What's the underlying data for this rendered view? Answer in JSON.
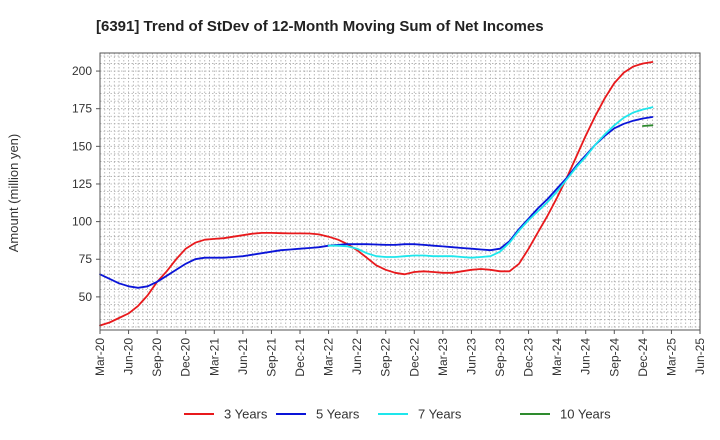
{
  "chart_data": {
    "type": "line",
    "title": "[6391]  Trend of StDev of 12-Month Moving Sum of Net Incomes",
    "ylabel": "Amount (million yen)",
    "xlabel": "",
    "ylim": [
      28,
      212
    ],
    "yticks": [
      50,
      75,
      100,
      125,
      150,
      175,
      200
    ],
    "xticks": [
      "Mar-20",
      "Jun-20",
      "Sep-20",
      "Dec-20",
      "Mar-21",
      "Jun-21",
      "Sep-21",
      "Dec-21",
      "Mar-22",
      "Jun-22",
      "Sep-22",
      "Dec-22",
      "Mar-23",
      "Jun-23",
      "Sep-23",
      "Dec-23",
      "Mar-24",
      "Jun-24",
      "Sep-24",
      "Dec-24",
      "Mar-25",
      "Jun-25"
    ],
    "grid": true,
    "legend_position": "bottom",
    "series": [
      {
        "name": "3 Years",
        "color": "#e8191c",
        "start_index": 0,
        "values": [
          31,
          33,
          36,
          39,
          44,
          51,
          60,
          67,
          75,
          82,
          86,
          88,
          88.5,
          89,
          90,
          91,
          92,
          92.5,
          92.5,
          92.3,
          92.2,
          92.2,
          92.1,
          91.5,
          90,
          88,
          85,
          81,
          76,
          71,
          68,
          66,
          65,
          66.5,
          67,
          66.5,
          66,
          66,
          67,
          68,
          68.5,
          68,
          67,
          67,
          72,
          82,
          93,
          104,
          116,
          129,
          143,
          157,
          170,
          182,
          192,
          199,
          203,
          205,
          206
        ]
      },
      {
        "name": "5 Years",
        "color": "#0a14d8",
        "start_index": 0,
        "values": [
          65,
          62,
          59,
          57,
          56,
          57,
          60,
          64,
          68,
          72,
          75,
          76,
          76,
          76,
          76.5,
          77,
          78,
          79,
          80,
          81,
          81.5,
          82,
          82.5,
          83,
          84,
          84.5,
          85,
          85,
          85,
          84.8,
          84.5,
          84.5,
          85,
          85,
          84.5,
          84,
          83.5,
          83,
          82.5,
          82,
          81.5,
          81,
          82,
          87,
          95,
          102,
          109,
          115,
          122,
          129,
          137,
          144,
          151,
          157,
          162,
          165,
          167,
          168.5,
          169.5
        ]
      },
      {
        "name": "7 Years",
        "color": "#1ee6ec",
        "start_index": 24,
        "values": [
          84,
          84,
          83.5,
          82,
          79,
          77,
          76.5,
          76.5,
          77,
          77.5,
          77.5,
          77,
          77,
          77,
          76.5,
          76,
          76.5,
          77,
          80,
          86,
          94,
          101,
          107,
          113,
          120,
          128,
          136,
          143,
          151,
          158,
          164,
          169,
          172.5,
          174.5,
          176
        ]
      },
      {
        "name": "10 Years",
        "color": "#2e8b2e",
        "start_index": 57,
        "values": [
          163.5,
          164
        ]
      }
    ]
  }
}
